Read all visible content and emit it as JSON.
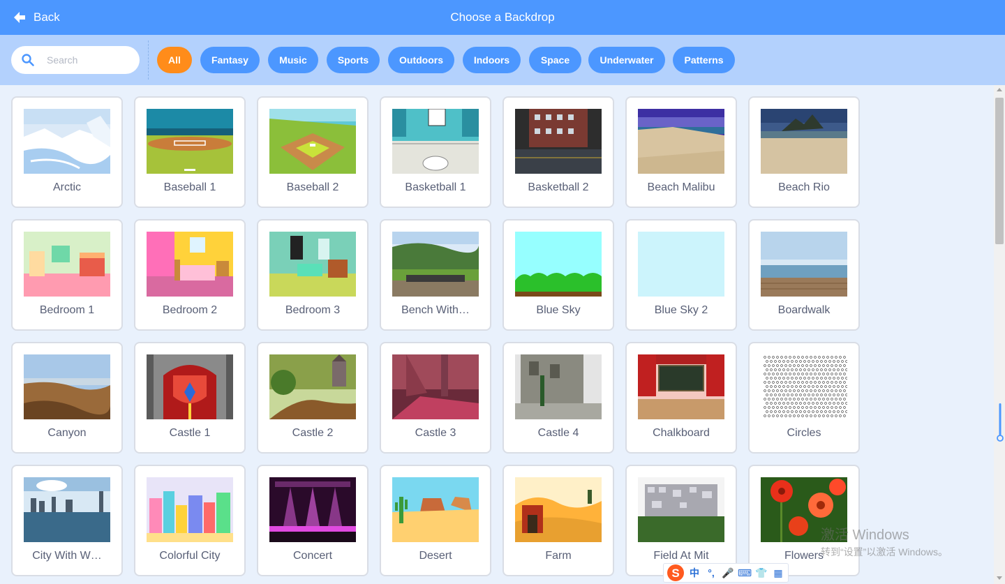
{
  "header": {
    "back_label": "Back",
    "title": "Choose a Backdrop"
  },
  "search": {
    "placeholder": "Search"
  },
  "tags": [
    {
      "label": "All",
      "active": true
    },
    {
      "label": "Fantasy"
    },
    {
      "label": "Music"
    },
    {
      "label": "Sports"
    },
    {
      "label": "Outdoors"
    },
    {
      "label": "Indoors"
    },
    {
      "label": "Space"
    },
    {
      "label": "Underwater"
    },
    {
      "label": "Patterns"
    }
  ],
  "backdrops": [
    {
      "name": "Arctic",
      "art": "arctic"
    },
    {
      "name": "Baseball 1",
      "art": "baseball1"
    },
    {
      "name": "Baseball 2",
      "art": "baseball2"
    },
    {
      "name": "Basketball 1",
      "art": "basketball1"
    },
    {
      "name": "Basketball 2",
      "art": "basketball2"
    },
    {
      "name": "Beach Malibu",
      "art": "beach-malibu"
    },
    {
      "name": "Beach Rio",
      "art": "beach-rio"
    },
    {
      "name": "Bedroom 1",
      "art": "bedroom1"
    },
    {
      "name": "Bedroom 2",
      "art": "bedroom2"
    },
    {
      "name": "Bedroom 3",
      "art": "bedroom3"
    },
    {
      "name": "Bench With…",
      "art": "bench"
    },
    {
      "name": "Blue Sky",
      "art": "blue-sky"
    },
    {
      "name": "Blue Sky 2",
      "art": "blue-sky-2"
    },
    {
      "name": "Boardwalk",
      "art": "boardwalk"
    },
    {
      "name": "Canyon",
      "art": "canyon"
    },
    {
      "name": "Castle 1",
      "art": "castle1"
    },
    {
      "name": "Castle 2",
      "art": "castle2"
    },
    {
      "name": "Castle 3",
      "art": "castle3"
    },
    {
      "name": "Castle 4",
      "art": "castle4"
    },
    {
      "name": "Chalkboard",
      "art": "chalkboard"
    },
    {
      "name": "Circles",
      "art": "circles"
    },
    {
      "name": "City With W…",
      "art": "city"
    },
    {
      "name": "Colorful City",
      "art": "colorful-city"
    },
    {
      "name": "Concert",
      "art": "concert"
    },
    {
      "name": "Desert",
      "art": "desert"
    },
    {
      "name": "Farm",
      "art": "farm"
    },
    {
      "name": "Field At Mit",
      "art": "field-mit"
    },
    {
      "name": "Flowers",
      "art": "flowers"
    }
  ],
  "watermark": {
    "line1": "激活 Windows",
    "line2": "转到“设置”以激活 Windows。"
  },
  "ime": {
    "items": [
      "中",
      "°,",
      "🎤",
      "⌨",
      "👕",
      "▦"
    ]
  },
  "colors": {
    "header": "#4c97ff",
    "filterbar": "#b3d1fd",
    "active_tag": "#ff8c1a",
    "tag": "#4c97ff",
    "grid_bg": "#e9f1fc"
  }
}
